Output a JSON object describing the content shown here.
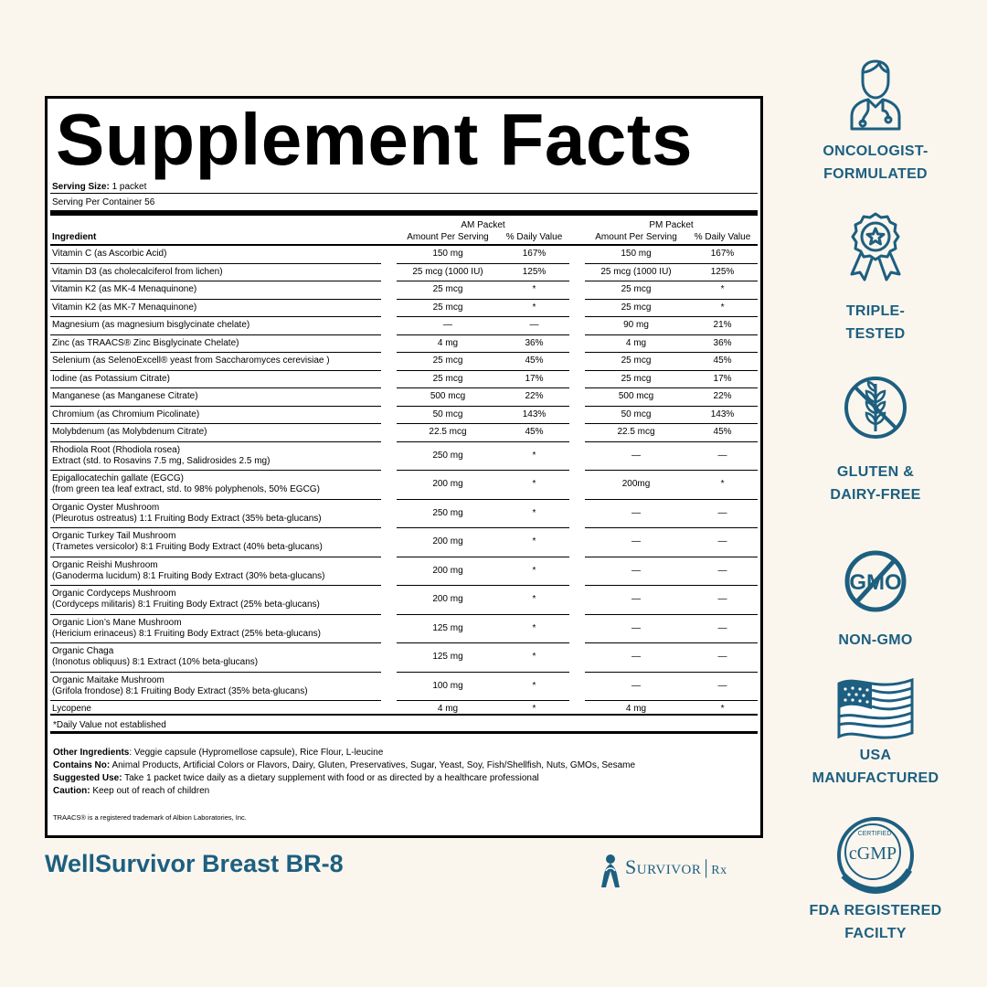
{
  "label": {
    "title": "Supplement Facts",
    "serving_size_label": "Serving Size:",
    "serving_size_value": " 1 packet",
    "servings_per_container": "Serving Per Container 56",
    "am_packet": "AM Packet",
    "pm_packet": "PM Packet",
    "col_ingredient": "Ingredient",
    "col_amount": "Amount Per Serving",
    "col_dv": "% Daily Value",
    "ingredients": [
      {
        "name": "Vitamin C (as Ascorbic Acid)",
        "sub": "",
        "am_amount": "150 mg",
        "am_dv": "167%",
        "pm_amount": "150 mg",
        "pm_dv": "167%"
      },
      {
        "name": "Vitamin D3 (as cholecalciferol from lichen)",
        "sub": "",
        "am_amount": "25 mcg (1000 IU)",
        "am_dv": "125%",
        "pm_amount": "25 mcg (1000 IU)",
        "pm_dv": "125%"
      },
      {
        "name": "Vitamin K2 (as MK-4 Menaquinone)",
        "sub": "",
        "am_amount": "25 mcg",
        "am_dv": "*",
        "pm_amount": "25 mcg",
        "pm_dv": "*"
      },
      {
        "name": "Vitamin K2 (as MK-7 Menaquinone)",
        "sub": "",
        "am_amount": "25 mcg",
        "am_dv": "*",
        "pm_amount": "25 mcg",
        "pm_dv": "*"
      },
      {
        "name": "Magnesium (as magnesium bisglycinate chelate)",
        "sub": "",
        "am_amount": "—",
        "am_dv": "—",
        "pm_amount": "90 mg",
        "pm_dv": "21%"
      },
      {
        "name": "Zinc (as TRAACS® Zinc Bisglycinate Chelate)",
        "sub": "",
        "am_amount": "4 mg",
        "am_dv": "36%",
        "pm_amount": "4 mg",
        "pm_dv": "36%"
      },
      {
        "name": "Selenium (as SelenoExcell® yeast from Saccharomyces cerevisiae )",
        "sub": "",
        "am_amount": "25 mcg",
        "am_dv": "45%",
        "pm_amount": "25 mcg",
        "pm_dv": "45%"
      },
      {
        "name": "Iodine (as Potassium Citrate)",
        "sub": "",
        "am_amount": "25 mcg",
        "am_dv": "17%",
        "pm_amount": "25 mcg",
        "pm_dv": "17%"
      },
      {
        "name": "Manganese (as Manganese Citrate)",
        "sub": "",
        "am_amount": "500 mcg",
        "am_dv": "22%",
        "pm_amount": "500 mcg",
        "pm_dv": "22%"
      },
      {
        "name": "Chromium (as Chromium Picolinate)",
        "sub": "",
        "am_amount": "50 mcg",
        "am_dv": "143%",
        "pm_amount": "50 mcg",
        "pm_dv": "143%"
      },
      {
        "name": "Molybdenum (as Molybdenum Citrate)",
        "sub": "",
        "am_amount": "22.5 mcg",
        "am_dv": "45%",
        "pm_amount": "22.5 mcg",
        "pm_dv": "45%"
      },
      {
        "name": "Rhodiola Root (Rhodiola rosea)",
        "sub": "Extract (std. to Rosavins 7.5 mg, Salidrosides 2.5 mg)",
        "am_amount": "250 mg",
        "am_dv": "*",
        "pm_amount": "—",
        "pm_dv": "—"
      },
      {
        "name": "Epigallocatechin gallate (EGCG)",
        "sub": "(from green tea leaf extract, std. to 98% polyphenols, 50% EGCG)",
        "am_amount": "200 mg",
        "am_dv": "*",
        "pm_amount": "200mg",
        "pm_dv": "*"
      },
      {
        "name": "Organic Oyster Mushroom",
        "sub": "(Pleurotus ostreatus) 1:1 Fruiting Body Extract (35% beta-glucans)",
        "am_amount": "250 mg",
        "am_dv": "*",
        "pm_amount": "—",
        "pm_dv": "—"
      },
      {
        "name": "Organic Turkey Tail Mushroom",
        "sub": "(Trametes versicolor) 8:1 Fruiting Body Extract (40% beta-glucans)",
        "am_amount": "200 mg",
        "am_dv": "*",
        "pm_amount": "—",
        "pm_dv": "—"
      },
      {
        "name": "Organic Reishi Mushroom",
        "sub": "(Ganoderma lucidum) 8:1 Fruiting Body Extract (30% beta-glucans)",
        "am_amount": "200 mg",
        "am_dv": "*",
        "pm_amount": "—",
        "pm_dv": "—"
      },
      {
        "name": "Organic Cordyceps Mushroom",
        "sub": "(Cordyceps militaris) 8:1 Fruiting Body Extract (25% beta-glucans)",
        "am_amount": "200 mg",
        "am_dv": "*",
        "pm_amount": "—",
        "pm_dv": "—"
      },
      {
        "name": "Organic Lion’s Mane Mushroom",
        "sub": "(Hericium erinaceus) 8:1 Fruiting Body Extract (25% beta-glucans)",
        "am_amount": "125 mg",
        "am_dv": "*",
        "pm_amount": "—",
        "pm_dv": "—"
      },
      {
        "name": "Organic Chaga",
        "sub": "(Inonotus obliquus) 8:1 Extract (10% beta-glucans)",
        "am_amount": "125 mg",
        "am_dv": "*",
        "pm_amount": "—",
        "pm_dv": "—"
      },
      {
        "name": "Organic Maitake Mushroom",
        "sub": "(Grifola frondose) 8:1 Fruiting Body Extract (35% beta-glucans)",
        "am_amount": "100 mg",
        "am_dv": "*",
        "pm_amount": "—",
        "pm_dv": "—"
      },
      {
        "name": "Lycopene",
        "sub": "",
        "am_amount": "4 mg",
        "am_dv": "*",
        "pm_amount": "4 mg",
        "pm_dv": "*"
      }
    ],
    "dv_note": "*Daily Value not established",
    "other_ingredients_label": "Other Ingredients",
    "other_ingredients": ": Veggie capsule (Hypromellose capsule), Rice Flour, L-leucine",
    "contains_no_label": "Contains No:",
    "contains_no": " Animal Products, Artificial Colors or Flavors, Dairy, Gluten, Preservatives, Sugar, Yeast, Soy, Fish/Shellfish, Nuts, GMOs, Sesame",
    "suggested_use_label": "Suggested Use:",
    "suggested_use": " Take 1 packet twice daily as a dietary supplement with food or as directed by a healthcare professional",
    "caution_label": "Caution:",
    "caution": " Keep out of reach of children",
    "trademark_note": "TRAACS® is a registered trademark of Albion Laboratories, Inc."
  },
  "product_name": "WellSurvivor Breast BR-8",
  "brand": {
    "name": "Survivor",
    "suffix": "Rx"
  },
  "badges": [
    {
      "icon": "doctor-icon",
      "line1": "ONCOLOGIST-",
      "line2": "FORMULATED"
    },
    {
      "icon": "award-ribbon-icon",
      "line1": "TRIPLE-",
      "line2": "TESTED"
    },
    {
      "icon": "no-gluten-icon",
      "line1": "GLUTEN &",
      "line2": "DAIRY-FREE"
    },
    {
      "icon": "no-gmo-icon",
      "line1": "NON-GMO",
      "line2": ""
    },
    {
      "icon": "us-flag-icon",
      "line1": "USA",
      "line2": "MANUFACTURED"
    },
    {
      "icon": "cgmp-seal-icon",
      "line1": "FDA REGISTERED",
      "line2": "FACILTY"
    }
  ],
  "cgmp_seal": {
    "top": "CERTIFIED",
    "center": "cGMP"
  },
  "gmo_text": "GMO",
  "colors": {
    "brand_blue": "#1d5f80",
    "background": "#faf6ee"
  }
}
